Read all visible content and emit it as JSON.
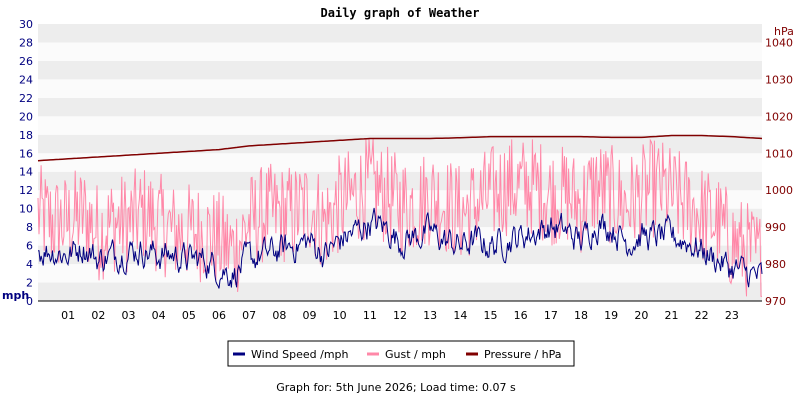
{
  "chart_data": {
    "type": "line",
    "title": "Daily graph of Weather",
    "ylabel_left": "mph",
    "ylabel_right": "hPa",
    "ylim_left": [
      0,
      30
    ],
    "ylim_right": [
      970,
      1045
    ],
    "yticks_left": [
      0,
      2,
      4,
      6,
      8,
      10,
      12,
      14,
      16,
      18,
      20,
      22,
      24,
      26,
      28,
      30
    ],
    "yticks_right": [
      970,
      980,
      990,
      1000,
      1010,
      1020,
      1030,
      1040
    ],
    "x_hours_range": [
      0,
      24
    ],
    "x_tick_labels": [
      "01",
      "02",
      "03",
      "04",
      "05",
      "06",
      "07",
      "08",
      "09",
      "10",
      "11",
      "12",
      "13",
      "14",
      "15",
      "16",
      "17",
      "18",
      "19",
      "20",
      "21",
      "22",
      "23"
    ],
    "grid": "horizontal alternating bands",
    "legend_position": "bottom-center",
    "series": [
      {
        "name": "Wind Speed /mph",
        "axis": "left",
        "color": "#000080",
        "x": [
          0.0,
          0.5,
          1.0,
          1.5,
          2.0,
          2.5,
          3.0,
          3.5,
          4.0,
          4.5,
          5.0,
          5.5,
          6.0,
          6.5,
          7.0,
          7.5,
          8.0,
          8.5,
          9.0,
          9.5,
          10.0,
          10.5,
          11.0,
          11.5,
          12.0,
          12.5,
          13.0,
          13.5,
          14.0,
          14.5,
          15.0,
          15.5,
          16.0,
          16.5,
          17.0,
          17.5,
          18.0,
          18.5,
          19.0,
          19.5,
          20.0,
          20.5,
          21.0,
          21.5,
          22.0,
          22.5,
          23.0,
          23.5,
          24.0
        ],
        "values": [
          5.5,
          5.5,
          5.0,
          6.0,
          4.5,
          5.0,
          5.5,
          5.5,
          5.0,
          5.0,
          4.5,
          4.5,
          3.5,
          3.0,
          4.5,
          5.0,
          5.5,
          6.0,
          6.5,
          5.0,
          6.5,
          7.5,
          8.5,
          8.0,
          6.5,
          7.0,
          7.5,
          6.5,
          6.0,
          6.5,
          6.0,
          6.5,
          7.0,
          7.5,
          8.0,
          7.5,
          6.5,
          8.5,
          8.0,
          6.5,
          7.0,
          7.0,
          7.0,
          6.5,
          5.5,
          4.5,
          3.5,
          3.0,
          2.5
        ]
      },
      {
        "name": "Gust / mph",
        "axis": "left",
        "color": "#ff88a8",
        "x": [
          0.0,
          0.5,
          1.0,
          1.5,
          2.0,
          2.5,
          3.0,
          3.5,
          4.0,
          4.5,
          5.0,
          5.5,
          6.0,
          6.5,
          7.0,
          7.5,
          8.0,
          8.5,
          9.0,
          9.5,
          10.0,
          10.5,
          11.0,
          11.5,
          12.0,
          12.5,
          13.0,
          13.5,
          14.0,
          14.5,
          15.0,
          15.5,
          16.0,
          16.5,
          17.0,
          17.5,
          18.0,
          18.5,
          19.0,
          19.5,
          20.0,
          20.5,
          21.0,
          21.5,
          22.0,
          22.5,
          23.0,
          23.5,
          24.0
        ],
        "values": [
          10,
          9,
          9,
          10,
          8,
          9,
          9,
          10,
          9,
          8,
          8,
          8,
          7,
          6,
          9,
          10,
          10,
          10,
          11,
          9,
          11,
          12,
          13,
          12,
          11,
          11,
          12,
          11,
          10,
          11,
          12,
          13,
          13,
          13,
          12,
          12,
          11,
          13,
          12,
          11,
          12,
          13,
          12,
          11,
          10,
          9,
          7,
          6,
          5
        ]
      },
      {
        "name": "Pressure / hPa",
        "axis": "right",
        "color": "#800000",
        "x": [
          0,
          1,
          2,
          3,
          4,
          5,
          6,
          7,
          8,
          9,
          10,
          11,
          12,
          13,
          14,
          15,
          16,
          17,
          18,
          19,
          20,
          21,
          22,
          23,
          24
        ],
        "values": [
          1008,
          1008.5,
          1009,
          1009.5,
          1010,
          1010.5,
          1011,
          1012,
          1012.5,
          1013,
          1013.5,
          1014,
          1014,
          1014,
          1014.2,
          1014.5,
          1014.5,
          1014.5,
          1014.5,
          1014.3,
          1014.3,
          1014.8,
          1014.8,
          1014.5,
          1014
        ]
      }
    ]
  },
  "footer": "Graph for: 5th June 2026; Load time: 0.07 s"
}
